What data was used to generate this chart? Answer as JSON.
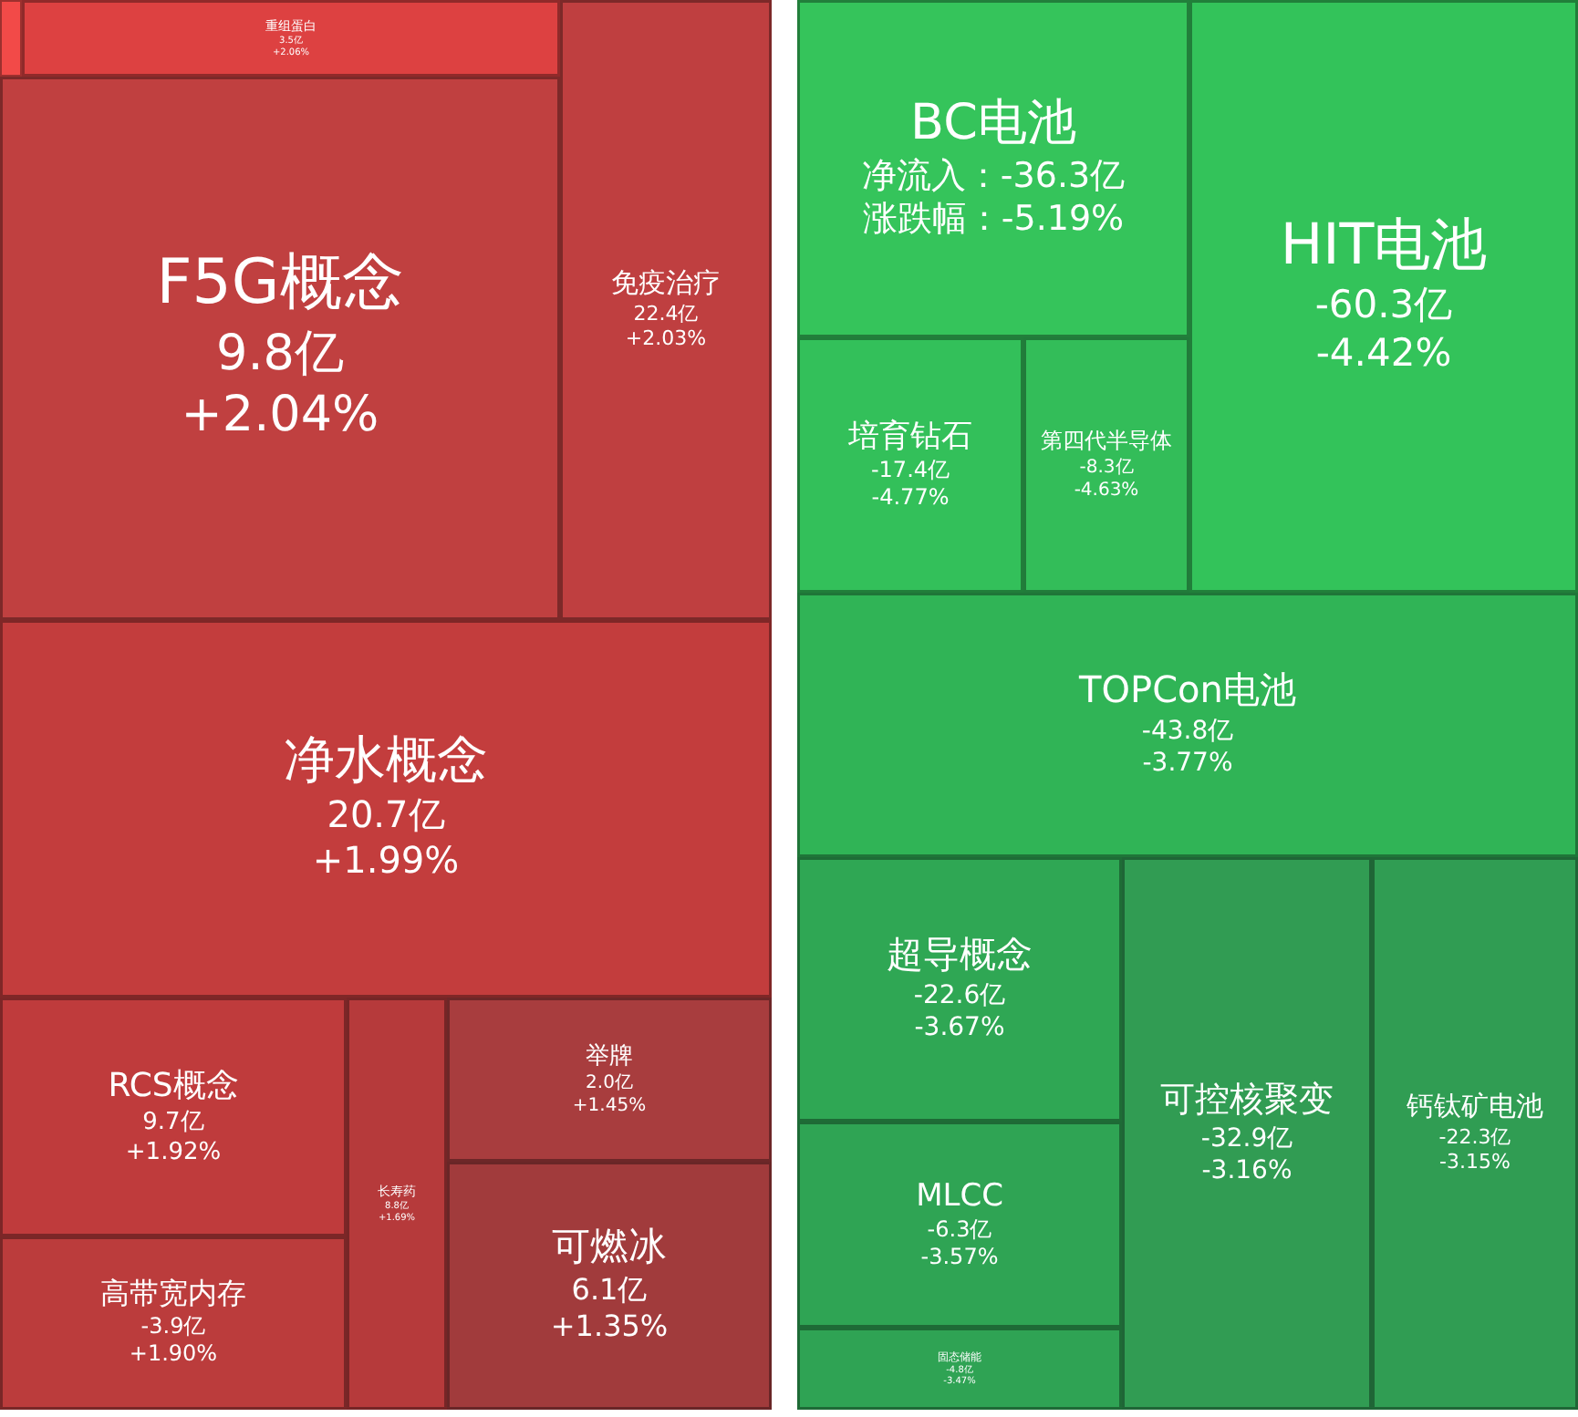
{
  "chart_data": [
    {
      "type": "other",
      "categories": [
        "重组蛋白",
        "免疫治疗",
        "F5G概念",
        "净水概念",
        "RCS概念",
        "高带宽内存",
        "长寿药",
        "举牌",
        "可燃冰"
      ],
      "series": [
        {
          "colors": [
            "#dd4141",
            "#bf3f40",
            "#c04040",
            "#c33d3d",
            "#bf3b3c",
            "#bb3c3c",
            "#b63a3b",
            "#a83d3e",
            "#a13b3c"
          ],
          "values": [
            3.5,
            22.4,
            9.8,
            20.7,
            9.7,
            -3.9,
            8.8,
            2.0,
            6.1
          ],
          "value_labels": [
            "3.5亿",
            "22.4亿",
            "9.8亿",
            "20.7亿",
            "9.7亿",
            "-3.9亿",
            "8.8亿",
            "2.0亿",
            "6.1亿"
          ]
        },
        {
          "values": [
            2.06,
            2.03,
            2.04,
            1.99,
            1.92,
            1.9,
            1.69,
            1.45,
            1.35
          ],
          "value_labels": [
            "+2.06%",
            "+2.03%",
            "+2.04%",
            "+1.99%",
            "+1.92%",
            "+1.90%",
            "+1.69%",
            "+1.45%",
            "+1.35%"
          ]
        }
      ]
    },
    {
      "type": "other",
      "categories": [
        "BC电池",
        "HIT电池",
        "培育钻石",
        "第四代半导体",
        "TOPCon电池",
        "超导概念",
        "MLCC",
        "固态储能",
        "可控核聚变",
        "钙钛矿电池"
      ],
      "series": [
        {
          "colors": [
            "#35c45b",
            "#33c35a",
            "#33c05a",
            "#33bd59",
            "#30b456",
            "#2fa754",
            "#2fa454",
            "#2fa354",
            "#319c53",
            "#309d53"
          ],
          "values": [
            -36.3,
            -60.3,
            -17.4,
            -8.3,
            -43.8,
            -22.6,
            -6.3,
            -4.8,
            -32.9,
            -22.3
          ],
          "value_labels": [
            "净流入：-36.3亿",
            "-60.3亿",
            "-17.4亿",
            "-8.3亿",
            "-43.8亿",
            "-22.6亿",
            "-6.3亿",
            "-4.8亿",
            "-32.9亿",
            "-22.3亿"
          ]
        },
        {
          "values": [
            -5.19,
            -4.42,
            -4.77,
            -4.63,
            -3.77,
            -3.67,
            -3.57,
            -3.47,
            -3.16,
            -3.15
          ],
          "value_labels": [
            "涨跌幅：-5.19%",
            "-4.42%",
            "-4.77%",
            "-4.63%",
            "-3.77%",
            "-3.67%",
            "-3.57%",
            "-3.47%",
            "-3.16%",
            "-3.15%"
          ]
        }
      ]
    }
  ]
}
